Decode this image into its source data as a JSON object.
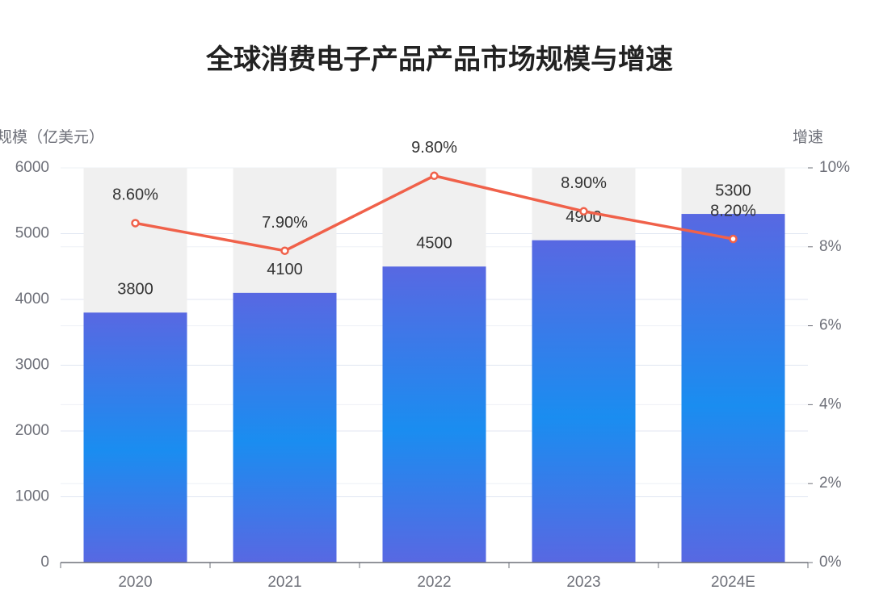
{
  "chart_data": {
    "type": "bar",
    "title": "全球消费电子产品产品市场规模与增速",
    "y_label": "规模（亿美元）",
    "y2_label": "增速",
    "categories": [
      "2020",
      "2021",
      "2022",
      "2023",
      "2024E"
    ],
    "series": [
      {
        "type": "bar",
        "color": [
          "#5868e2",
          "#1a8df0",
          "#5868e2"
        ],
        "values": [
          3800,
          4100,
          4500,
          4900,
          5300
        ]
      },
      {
        "type": "line",
        "axis": "y2",
        "color": "#f0614a",
        "values": [
          8.6,
          7.9,
          9.8,
          8.9,
          8.2
        ],
        "value_labels": [
          "8.60%",
          "7.90%",
          "9.80%",
          "8.90%",
          "8.20%"
        ]
      }
    ],
    "bar_background": "#f0f0f0",
    "ylim": [
      0,
      6000
    ],
    "yticks": [
      0,
      1000,
      2000,
      3000,
      4000,
      5000,
      6000
    ],
    "y2lim": [
      0,
      10
    ],
    "y2ticks": [
      {
        "value": 0,
        "label": "0%"
      },
      {
        "value": 2,
        "label": "2%"
      },
      {
        "value": 4,
        "label": "4%"
      },
      {
        "value": 6,
        "label": "6%"
      },
      {
        "value": 8,
        "label": "8%"
      },
      {
        "value": 10,
        "label": "10%"
      }
    ],
    "grid": true
  }
}
